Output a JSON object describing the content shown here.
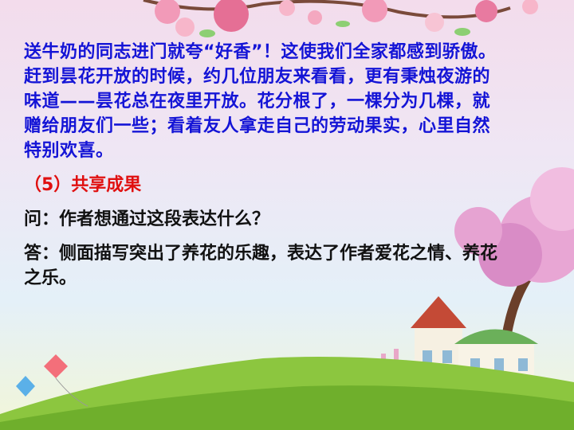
{
  "slide": {
    "paragraph": "送牛奶的同志进门就夸“好香”！这使我们全家都感到骄傲。赶到昙花开放的时候，约几位朋友来看看，更有秉烛夜游的味道——昙花总在夜里开放。花分根了，一棵分为几棵，就赠给朋友们一些；看着友人拿走自己的劳动果实，心里自然特别欢喜。",
    "heading": "（5）共享成果",
    "question": "问：作者想通过这段表达什么？",
    "answer": "答：侧面描写突出了养花的乐趣，表达了作者爱花之情、养花之乐。"
  },
  "colors": {
    "paragraph": "#1414d6",
    "heading": "#e01010",
    "qa": "#111111"
  }
}
